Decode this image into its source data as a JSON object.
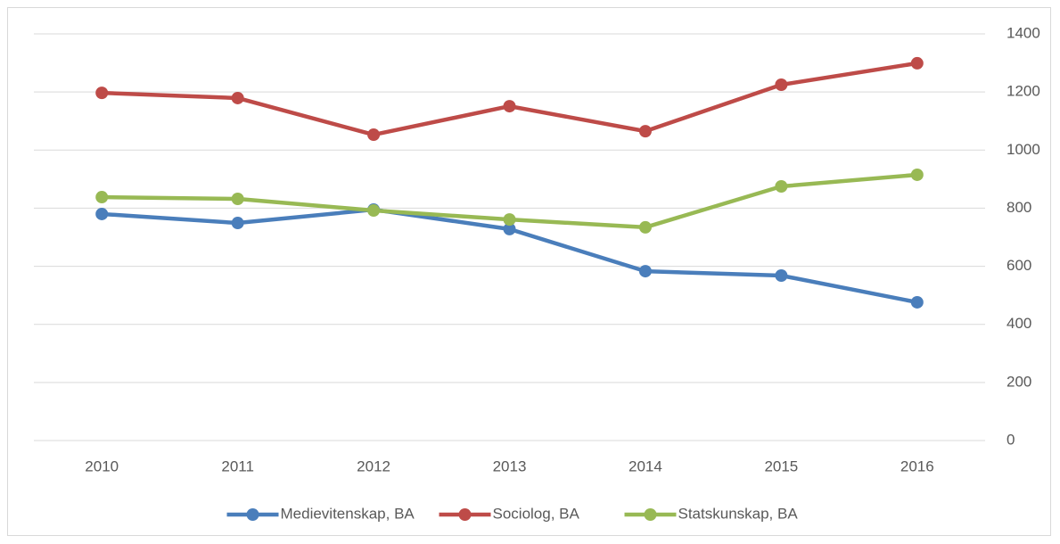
{
  "chart_data": {
    "type": "line",
    "categories": [
      "2010",
      "2011",
      "2012",
      "2013",
      "2014",
      "2015",
      "2016"
    ],
    "series": [
      {
        "name": "Medievitenskap, BA",
        "color": "#4a7ebb",
        "values": [
          780,
          749,
          795,
          728,
          583,
          568,
          476
        ]
      },
      {
        "name": "Sociolog, BA",
        "color": "#be4b48",
        "values": [
          1197,
          1179,
          1053,
          1151,
          1065,
          1225,
          1299
        ]
      },
      {
        "name": "Statskunskap, BA",
        "color": "#98b954",
        "values": [
          838,
          832,
          792,
          761,
          734,
          875,
          915
        ]
      }
    ],
    "ylim": [
      0,
      1400
    ],
    "yticks": [
      0,
      200,
      400,
      600,
      800,
      1000,
      1200,
      1400
    ],
    "y_axis_position": "right",
    "grid": true,
    "legend": "bottom"
  }
}
